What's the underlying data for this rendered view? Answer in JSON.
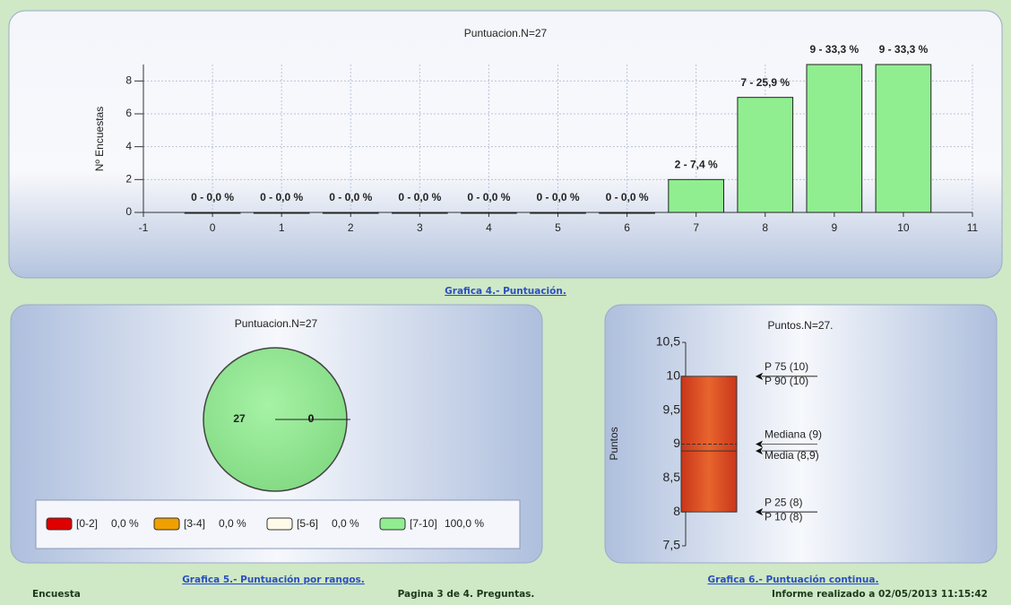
{
  "chart_data": [
    {
      "type": "bar",
      "title": "Puntuacion.N=27",
      "y_label": "Nº Encuestas",
      "x": [
        0,
        1,
        2,
        3,
        4,
        5,
        6,
        7,
        8,
        9,
        10
      ],
      "values": [
        0,
        0,
        0,
        0,
        0,
        0,
        0,
        2,
        7,
        9,
        9
      ],
      "value_labels": [
        "0 - 0,0 %",
        "0 - 0,0 %",
        "0 - 0,0 %",
        "0 - 0,0 %",
        "0 - 0,0 %",
        "0 - 0,0 %",
        "0 - 0,0 %",
        "2 - 7,4 %",
        "7 - 25,9 %",
        "9 - 33,3 %",
        "9 - 33,3 %"
      ],
      "color": "#90ee90",
      "xlim": [
        -1,
        11
      ],
      "xticks": [
        -1,
        0,
        1,
        2,
        3,
        4,
        5,
        6,
        7,
        8,
        9,
        10,
        11
      ],
      "ylim": [
        0,
        9
      ],
      "yticks": [
        0,
        2,
        4,
        6,
        8
      ],
      "grid": true,
      "caption": "Grafica 4.- Puntuación."
    },
    {
      "type": "pie",
      "title": "Puntuacion.N=27",
      "categories": [
        "[0-2]",
        "[3-4]",
        "[5-6]",
        "[7-10]"
      ],
      "values": [
        0,
        0,
        0,
        27
      ],
      "percent_labels": [
        "0,0 %",
        "0,0 %",
        "0,0 %",
        "100,0 %"
      ],
      "colors": [
        "#e00000",
        "#f0a000",
        "#fffbe8",
        "#90ee90"
      ],
      "caption": "Grafica 5.- Puntuación por rangos."
    },
    {
      "type": "box",
      "title": "Puntos.N=27.",
      "y_label": "Puntos",
      "ylim": [
        7.5,
        10.5
      ],
      "yticks": [
        {
          "value": 7.5,
          "label": "7,5"
        },
        8,
        {
          "value": 8.5,
          "label": "8,5"
        },
        9,
        {
          "value": 9.5,
          "label": "9,5"
        },
        10,
        {
          "value": 10.5,
          "label": "10,5"
        }
      ],
      "annotations": [
        {
          "label": "P 75 (10)",
          "value": 10
        },
        {
          "label": "P 90 (10)",
          "value": 10
        },
        {
          "label": "Mediana (9)",
          "value": 9
        },
        {
          "label": "Media (8,9)",
          "value": 8.9
        },
        {
          "label": "P 25 (8)",
          "value": 8
        },
        {
          "label": "P 10 (8)",
          "value": 8
        }
      ],
      "color": "#d9481f",
      "caption": "Grafica 6.- Puntuación continua."
    }
  ],
  "footer": {
    "left": "Encuesta",
    "center": "Pagina 3 de 4. Preguntas.",
    "right": "Informe realizado a 02/05/2013 11:15:42"
  }
}
